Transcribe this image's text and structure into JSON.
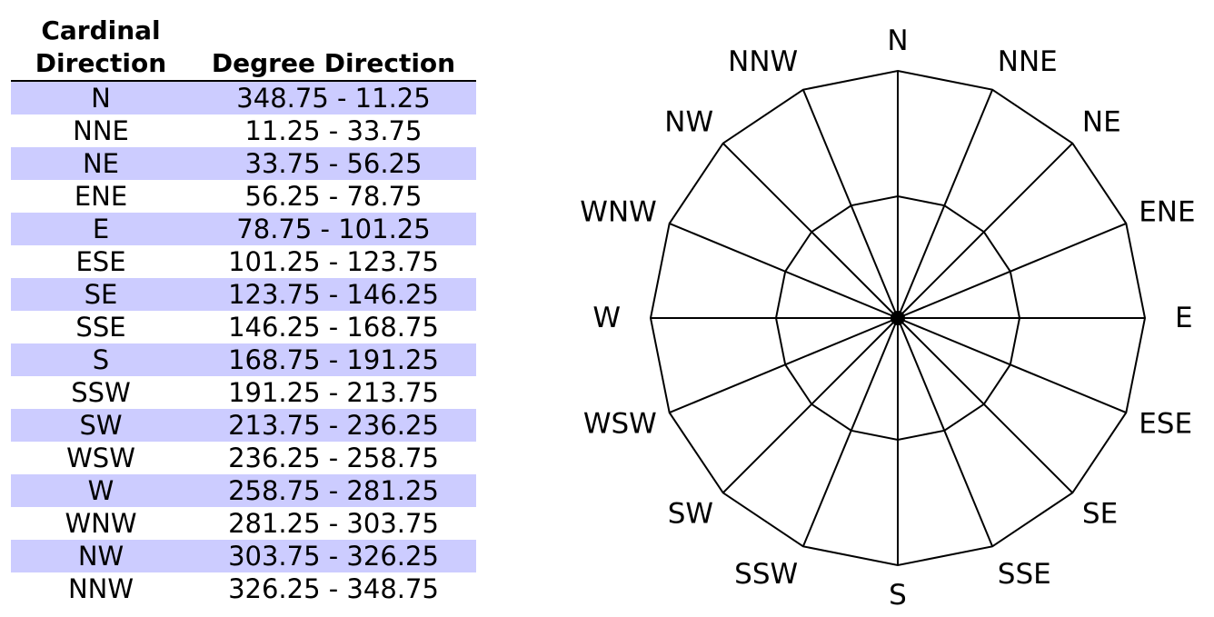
{
  "table": {
    "header_cardinal": "Cardinal\nDirection",
    "header_degree": "Degree Direction",
    "rows": [
      {
        "cardinal": "N",
        "degrees": "348.75 - 11.25"
      },
      {
        "cardinal": "NNE",
        "degrees": "11.25 - 33.75"
      },
      {
        "cardinal": "NE",
        "degrees": "33.75 - 56.25"
      },
      {
        "cardinal": "ENE",
        "degrees": "56.25 - 78.75"
      },
      {
        "cardinal": "E",
        "degrees": "78.75 - 101.25"
      },
      {
        "cardinal": "ESE",
        "degrees": "101.25 - 123.75"
      },
      {
        "cardinal": "SE",
        "degrees": "123.75 - 146.25"
      },
      {
        "cardinal": "SSE",
        "degrees": "146.25 - 168.75"
      },
      {
        "cardinal": "S",
        "degrees": "168.75 - 191.25"
      },
      {
        "cardinal": "SSW",
        "degrees": "191.25 - 213.75"
      },
      {
        "cardinal": "SW",
        "degrees": "213.75 - 236.25"
      },
      {
        "cardinal": "WSW",
        "degrees": "236.25 - 258.75"
      },
      {
        "cardinal": "W",
        "degrees": "258.75 - 281.25"
      },
      {
        "cardinal": "WNW",
        "degrees": "281.25 - 303.75"
      },
      {
        "cardinal": "NW",
        "degrees": "303.75 - 326.25"
      },
      {
        "cardinal": "NNW",
        "degrees": "326.25 - 348.75"
      }
    ]
  },
  "compass": {
    "labels": [
      "N",
      "NNE",
      "NE",
      "ENE",
      "E",
      "ESE",
      "SE",
      "SSE",
      "S",
      "SSW",
      "SW",
      "WSW",
      "W",
      "WNW",
      "NW",
      "NNW"
    ]
  },
  "colors": {
    "row_highlight": "#ccccff",
    "line": "#000000"
  }
}
